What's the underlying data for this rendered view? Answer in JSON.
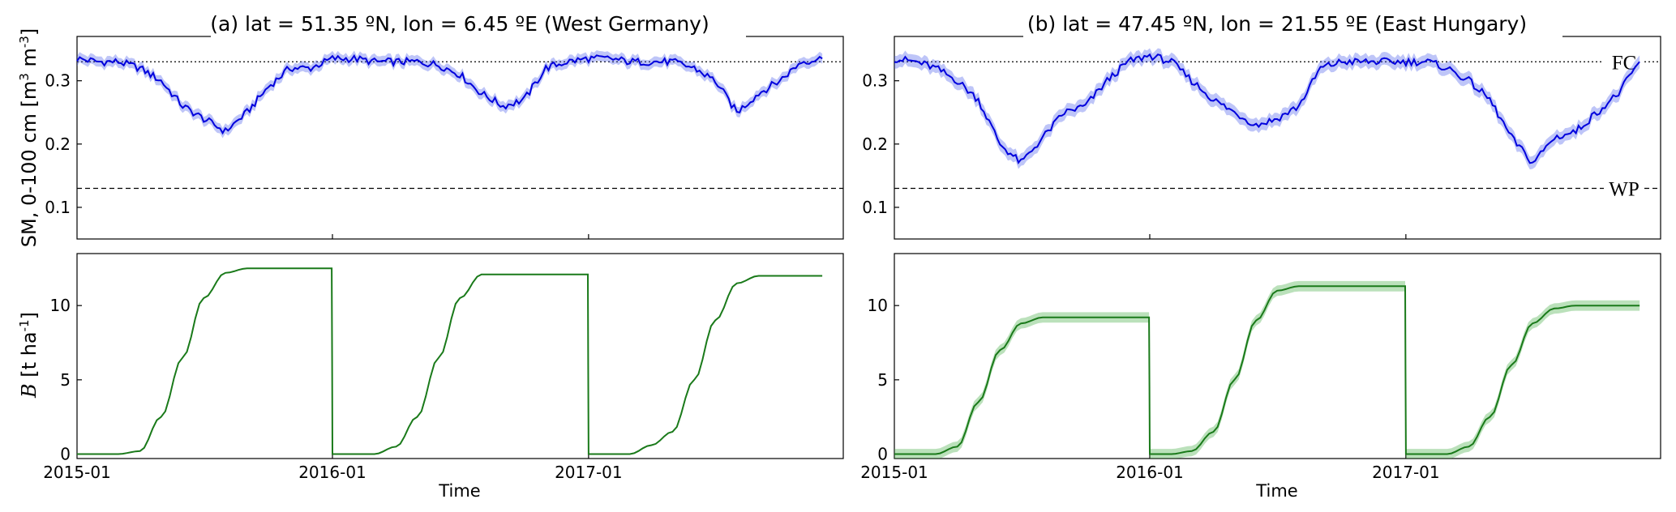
{
  "figure": {
    "ylabel_sm_text": "SM, 0-100 cm [m",
    "ylabel_sm_units": "3",
    "ylabel_sm_mid": " m",
    "ylabel_sm_units2": "-3",
    "ylabel_sm_end": "]",
    "ylabel_b_var": "B",
    "ylabel_b_text": " [t ha",
    "ylabel_b_sup": "-1",
    "ylabel_b_end": "]"
  },
  "chart_data": [
    {
      "id": "a-sm",
      "type": "line",
      "title": "(a) lat = 51.35 ºN, lon = 6.45 ºE (West Germany)",
      "xlabel": "",
      "ylabel": "SM, 0-100 cm [m3 m-3]",
      "ylim": [
        0.05,
        0.37
      ],
      "yticks": [
        0.1,
        0.2,
        0.3
      ],
      "xlim": [
        "2015-01-01",
        "2017-12-31"
      ],
      "reference_lines": [
        {
          "name": "FC",
          "value": 0.33,
          "style": "dotted",
          "label_shown": false
        },
        {
          "name": "WP",
          "value": 0.13,
          "style": "dashed",
          "label_shown": false
        }
      ],
      "color": "#0000dd",
      "series": [
        {
          "x": [
            "2015-01",
            "2015-02",
            "2015-03",
            "2015-04",
            "2015-05",
            "2015-06",
            "2015-07",
            "2015-08",
            "2015-09",
            "2015-10",
            "2015-11",
            "2015-12",
            "2016-01",
            "2016-02",
            "2016-03",
            "2016-04",
            "2016-05",
            "2016-06",
            "2016-07",
            "2016-08",
            "2016-09",
            "2016-10",
            "2016-11",
            "2016-12",
            "2017-01",
            "2017-02",
            "2017-03",
            "2017-04",
            "2017-05",
            "2017-06",
            "2017-07",
            "2017-08",
            "2017-09",
            "2017-10",
            "2017-11",
            "2017-12"
          ],
          "values": [
            0.335,
            0.33,
            0.33,
            0.32,
            0.3,
            0.26,
            0.24,
            0.22,
            0.25,
            0.29,
            0.32,
            0.32,
            0.335,
            0.335,
            0.33,
            0.33,
            0.33,
            0.325,
            0.31,
            0.28,
            0.26,
            0.27,
            0.32,
            0.33,
            0.335,
            0.335,
            0.33,
            0.33,
            0.33,
            0.32,
            0.3,
            0.25,
            0.28,
            0.3,
            0.33,
            0.335
          ],
          "band": 0.008
        }
      ]
    },
    {
      "id": "b-sm",
      "type": "line",
      "title": "(b) lat = 47.45 ºN, lon = 21.55 ºE (East Hungary)",
      "xlabel": "",
      "ylabel": "",
      "ylim": [
        0.05,
        0.37
      ],
      "yticks": [
        0.1,
        0.2,
        0.3
      ],
      "xlim": [
        "2015-01-01",
        "2017-12-31"
      ],
      "reference_lines": [
        {
          "name": "FC",
          "value": 0.33,
          "style": "dotted",
          "label_shown": true
        },
        {
          "name": "WP",
          "value": 0.13,
          "style": "dashed",
          "label_shown": true
        }
      ],
      "color": "#0000dd",
      "series": [
        {
          "x": [
            "2015-01",
            "2015-02",
            "2015-03",
            "2015-04",
            "2015-05",
            "2015-06",
            "2015-07",
            "2015-08",
            "2015-09",
            "2015-10",
            "2015-11",
            "2015-12",
            "2016-01",
            "2016-02",
            "2016-03",
            "2016-04",
            "2016-05",
            "2016-06",
            "2016-07",
            "2016-08",
            "2016-09",
            "2016-10",
            "2016-11",
            "2016-12",
            "2017-01",
            "2017-02",
            "2017-03",
            "2017-04",
            "2017-05",
            "2017-06",
            "2017-07",
            "2017-08",
            "2017-09",
            "2017-10",
            "2017-11",
            "2017-12"
          ],
          "values": [
            0.335,
            0.33,
            0.32,
            0.3,
            0.27,
            0.2,
            0.17,
            0.21,
            0.25,
            0.26,
            0.3,
            0.33,
            0.34,
            0.33,
            0.3,
            0.27,
            0.25,
            0.23,
            0.24,
            0.26,
            0.32,
            0.33,
            0.33,
            0.33,
            0.33,
            0.33,
            0.32,
            0.3,
            0.27,
            0.21,
            0.17,
            0.21,
            0.22,
            0.25,
            0.28,
            0.33
          ],
          "band": 0.01
        }
      ]
    },
    {
      "id": "a-b",
      "type": "line",
      "title": "",
      "xlabel": "Time",
      "ylabel": "B [t ha-1]",
      "ylim": [
        -0.3,
        13.5
      ],
      "yticks": [
        0,
        5,
        10
      ],
      "xticks": [
        "2015-01",
        "2016-01",
        "2017-01"
      ],
      "xlim": [
        "2015-01-01",
        "2017-12-31"
      ],
      "color": "#1a7a1a",
      "series": [
        {
          "x": [
            "2015-01",
            "2015-03",
            "2015-04",
            "2015-05",
            "2015-06",
            "2015-07",
            "2015-08",
            "2015-09",
            "2015-10",
            "2015-11",
            "2015-12",
            "2015-12-31",
            "2016-01",
            "2016-03",
            "2016-04",
            "2016-05",
            "2016-06",
            "2016-07",
            "2016-08",
            "2016-09",
            "2016-10",
            "2016-11",
            "2016-12",
            "2016-12-31",
            "2017-01",
            "2017-03",
            "2017-04",
            "2017-05",
            "2017-06",
            "2017-07",
            "2017-08",
            "2017-09",
            "2017-10",
            "2017-11",
            "2017-12"
          ],
          "values": [
            0,
            0,
            0.2,
            2.5,
            6.5,
            10.5,
            12.2,
            12.5,
            12.5,
            12.5,
            12.5,
            12.5,
            0,
            0,
            0.5,
            2.5,
            6.5,
            10.5,
            12.1,
            12.1,
            12.1,
            12.1,
            12.1,
            12.1,
            0,
            0,
            0.6,
            1.5,
            5.0,
            9.0,
            11.5,
            12.0,
            12.0,
            12.0,
            12.0
          ],
          "band": 0.0
        }
      ]
    },
    {
      "id": "b-b",
      "type": "line",
      "title": "",
      "xlabel": "Time",
      "ylabel": "",
      "ylim": [
        -0.3,
        13.5
      ],
      "yticks": [
        0,
        5,
        10
      ],
      "xticks": [
        "2015-01",
        "2016-01",
        "2017-01"
      ],
      "xlim": [
        "2015-01-01",
        "2017-12-31"
      ],
      "color": "#1a7a1a",
      "series": [
        {
          "x": [
            "2015-01",
            "2015-03",
            "2015-04",
            "2015-05",
            "2015-06",
            "2015-07",
            "2015-08",
            "2015-09",
            "2015-10",
            "2015-11",
            "2015-12",
            "2015-12-31",
            "2016-01",
            "2016-02",
            "2016-03",
            "2016-04",
            "2016-05",
            "2016-06",
            "2016-07",
            "2016-08",
            "2016-09",
            "2016-10",
            "2016-11",
            "2016-12",
            "2016-12-31",
            "2017-01",
            "2017-03",
            "2017-04",
            "2017-05",
            "2017-06",
            "2017-07",
            "2017-08",
            "2017-09",
            "2017-10",
            "2017-11",
            "2017-12"
          ],
          "values": [
            0,
            0,
            0.5,
            3.5,
            7.0,
            8.8,
            9.2,
            9.2,
            9.2,
            9.2,
            9.2,
            9.2,
            0,
            0,
            0.2,
            1.5,
            5.0,
            9.0,
            11.0,
            11.3,
            11.3,
            11.3,
            11.3,
            11.3,
            11.3,
            0,
            0,
            0.5,
            2.5,
            6.0,
            8.8,
            9.8,
            10.0,
            10.0,
            10.0,
            10.0
          ],
          "band": 0.35
        }
      ]
    }
  ]
}
